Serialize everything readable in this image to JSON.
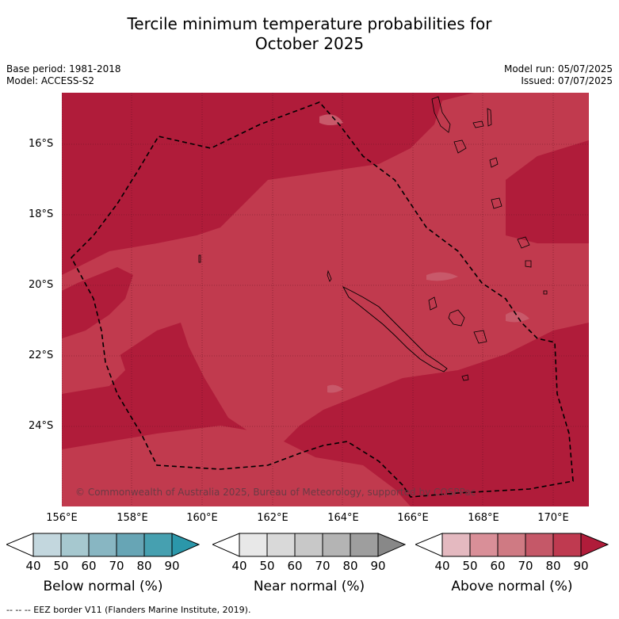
{
  "title_line1": "Tercile minimum temperature probabilities for",
  "title_line2": "October 2025",
  "base_period": "Base period: 1981-2018",
  "model": "Model: ACCESS-S2",
  "model_run": "Model run: 05/07/2025",
  "issued": "Issued: 07/07/2025",
  "lat_labels": [
    "16°S",
    "18°S",
    "20°S",
    "22°S",
    "24°S"
  ],
  "lon_labels": [
    "156°E",
    "158°E",
    "160°E",
    "162°E",
    "164°E",
    "166°E",
    "168°E",
    "170°E"
  ],
  "copyright": "© Commonwealth of Australia 2025, Bureau of Meteorology, supported by COSPPac",
  "colorbars": [
    {
      "label": "Below normal (%)",
      "ticks": [
        "40",
        "50",
        "60",
        "70",
        "80",
        "90"
      ],
      "colors": [
        "#ffffff",
        "#c3d7de",
        "#a6c8cf",
        "#88b6c2",
        "#67a5b5",
        "#46a0b0",
        "#2b97aa"
      ]
    },
    {
      "label": "Near normal (%)",
      "ticks": [
        "40",
        "50",
        "60",
        "70",
        "80",
        "90"
      ],
      "colors": [
        "#ffffff",
        "#e8e8e8",
        "#d9d9d9",
        "#c8c8c8",
        "#b4b4b4",
        "#9e9e9e",
        "#888888"
      ]
    },
    {
      "label": "Above normal (%)",
      "ticks": [
        "40",
        "50",
        "60",
        "70",
        "80",
        "90"
      ],
      "colors": [
        "#ffffff",
        "#e4b9c0",
        "#d98f98",
        "#cf7a83",
        "#c55868",
        "#bf3a50",
        "#b01c3a"
      ]
    }
  ],
  "footnote": "--  --  -- EEZ border V11 (Flanders Marine Institute, 2019).",
  "map_colors": {
    "above_80_90": "#b01c3a",
    "above_70_80": "#c13a50",
    "above_60_70": "#c8596a"
  }
}
